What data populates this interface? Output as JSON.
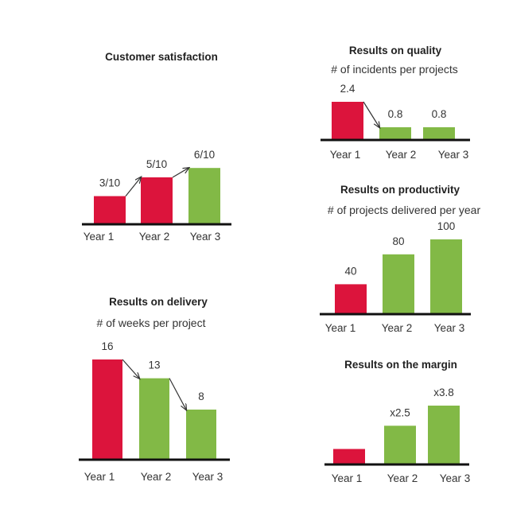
{
  "colors": {
    "red": "#dc143c",
    "green": "#82b946",
    "axis": "#111111",
    "arrow": "#333333"
  },
  "chart_data": [
    {
      "type": "bar",
      "title": "Customer satisfaction",
      "subtitle": "",
      "categories": [
        "Year 1",
        "Year 2",
        "Year 3"
      ],
      "values": [
        3,
        5,
        6
      ],
      "value_labels": [
        "3/10",
        "5/10",
        "6/10"
      ],
      "bar_colors": [
        "red",
        "red",
        "green"
      ],
      "arrows": [
        [
          0,
          1
        ],
        [
          1,
          2
        ]
      ],
      "ylim": [
        0,
        10
      ]
    },
    {
      "type": "bar",
      "title": "Results on quality",
      "subtitle": "# of incidents per projects",
      "categories": [
        "Year 1",
        "Year 2",
        "Year 3"
      ],
      "values": [
        2.4,
        0.8,
        0.8
      ],
      "value_labels": [
        "2.4",
        "0.8",
        "0.8"
      ],
      "bar_colors": [
        "red",
        "green",
        "green"
      ],
      "arrows": [
        [
          0,
          1
        ]
      ],
      "ylim": [
        0,
        2.4
      ]
    },
    {
      "type": "bar",
      "title": "Results on productivity",
      "subtitle": "# of projects delivered per year",
      "categories": [
        "Year 1",
        "Year 2",
        "Year 3"
      ],
      "values": [
        40,
        80,
        100
      ],
      "value_labels": [
        "40",
        "80",
        "100"
      ],
      "bar_colors": [
        "red",
        "green",
        "green"
      ],
      "arrows": [],
      "ylim": [
        0,
        100
      ]
    },
    {
      "type": "bar",
      "title": "Results on delivery",
      "subtitle": "# of weeks per project",
      "categories": [
        "Year 1",
        "Year 2",
        "Year 3"
      ],
      "values": [
        16,
        13,
        8
      ],
      "value_labels": [
        "16",
        "13",
        "8"
      ],
      "bar_colors": [
        "red",
        "green",
        "green"
      ],
      "arrows": [
        [
          0,
          1
        ],
        [
          1,
          2
        ]
      ],
      "ylim": [
        0,
        16
      ]
    },
    {
      "type": "bar",
      "title": "Results on the margin",
      "subtitle": "",
      "categories": [
        "Year 1",
        "Year 2",
        "Year 3"
      ],
      "values": [
        1,
        2.5,
        3.8
      ],
      "value_labels": [
        "",
        "x2.5",
        "x3.8"
      ],
      "bar_colors": [
        "red",
        "green",
        "green"
      ],
      "arrows": [],
      "ylim": [
        0,
        3.8
      ]
    }
  ]
}
